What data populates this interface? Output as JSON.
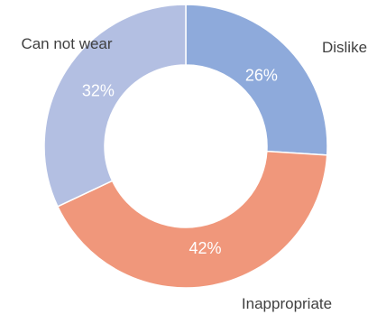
{
  "chart_data": {
    "type": "pie",
    "variant": "donut",
    "title": "",
    "categories": [
      "Dislike",
      "Inappropriate",
      "Can not wear"
    ],
    "values": [
      26,
      42,
      32
    ],
    "value_labels": [
      "26%",
      "42%",
      "32%"
    ],
    "unit": "%",
    "colors": [
      "#8eaadb",
      "#f0977b",
      "#b3bfe2"
    ],
    "legend": "none",
    "start_angle_deg": 0,
    "direction": "clockwise",
    "labels": {
      "category_labels_outside": true,
      "value_labels_inside": true
    }
  }
}
